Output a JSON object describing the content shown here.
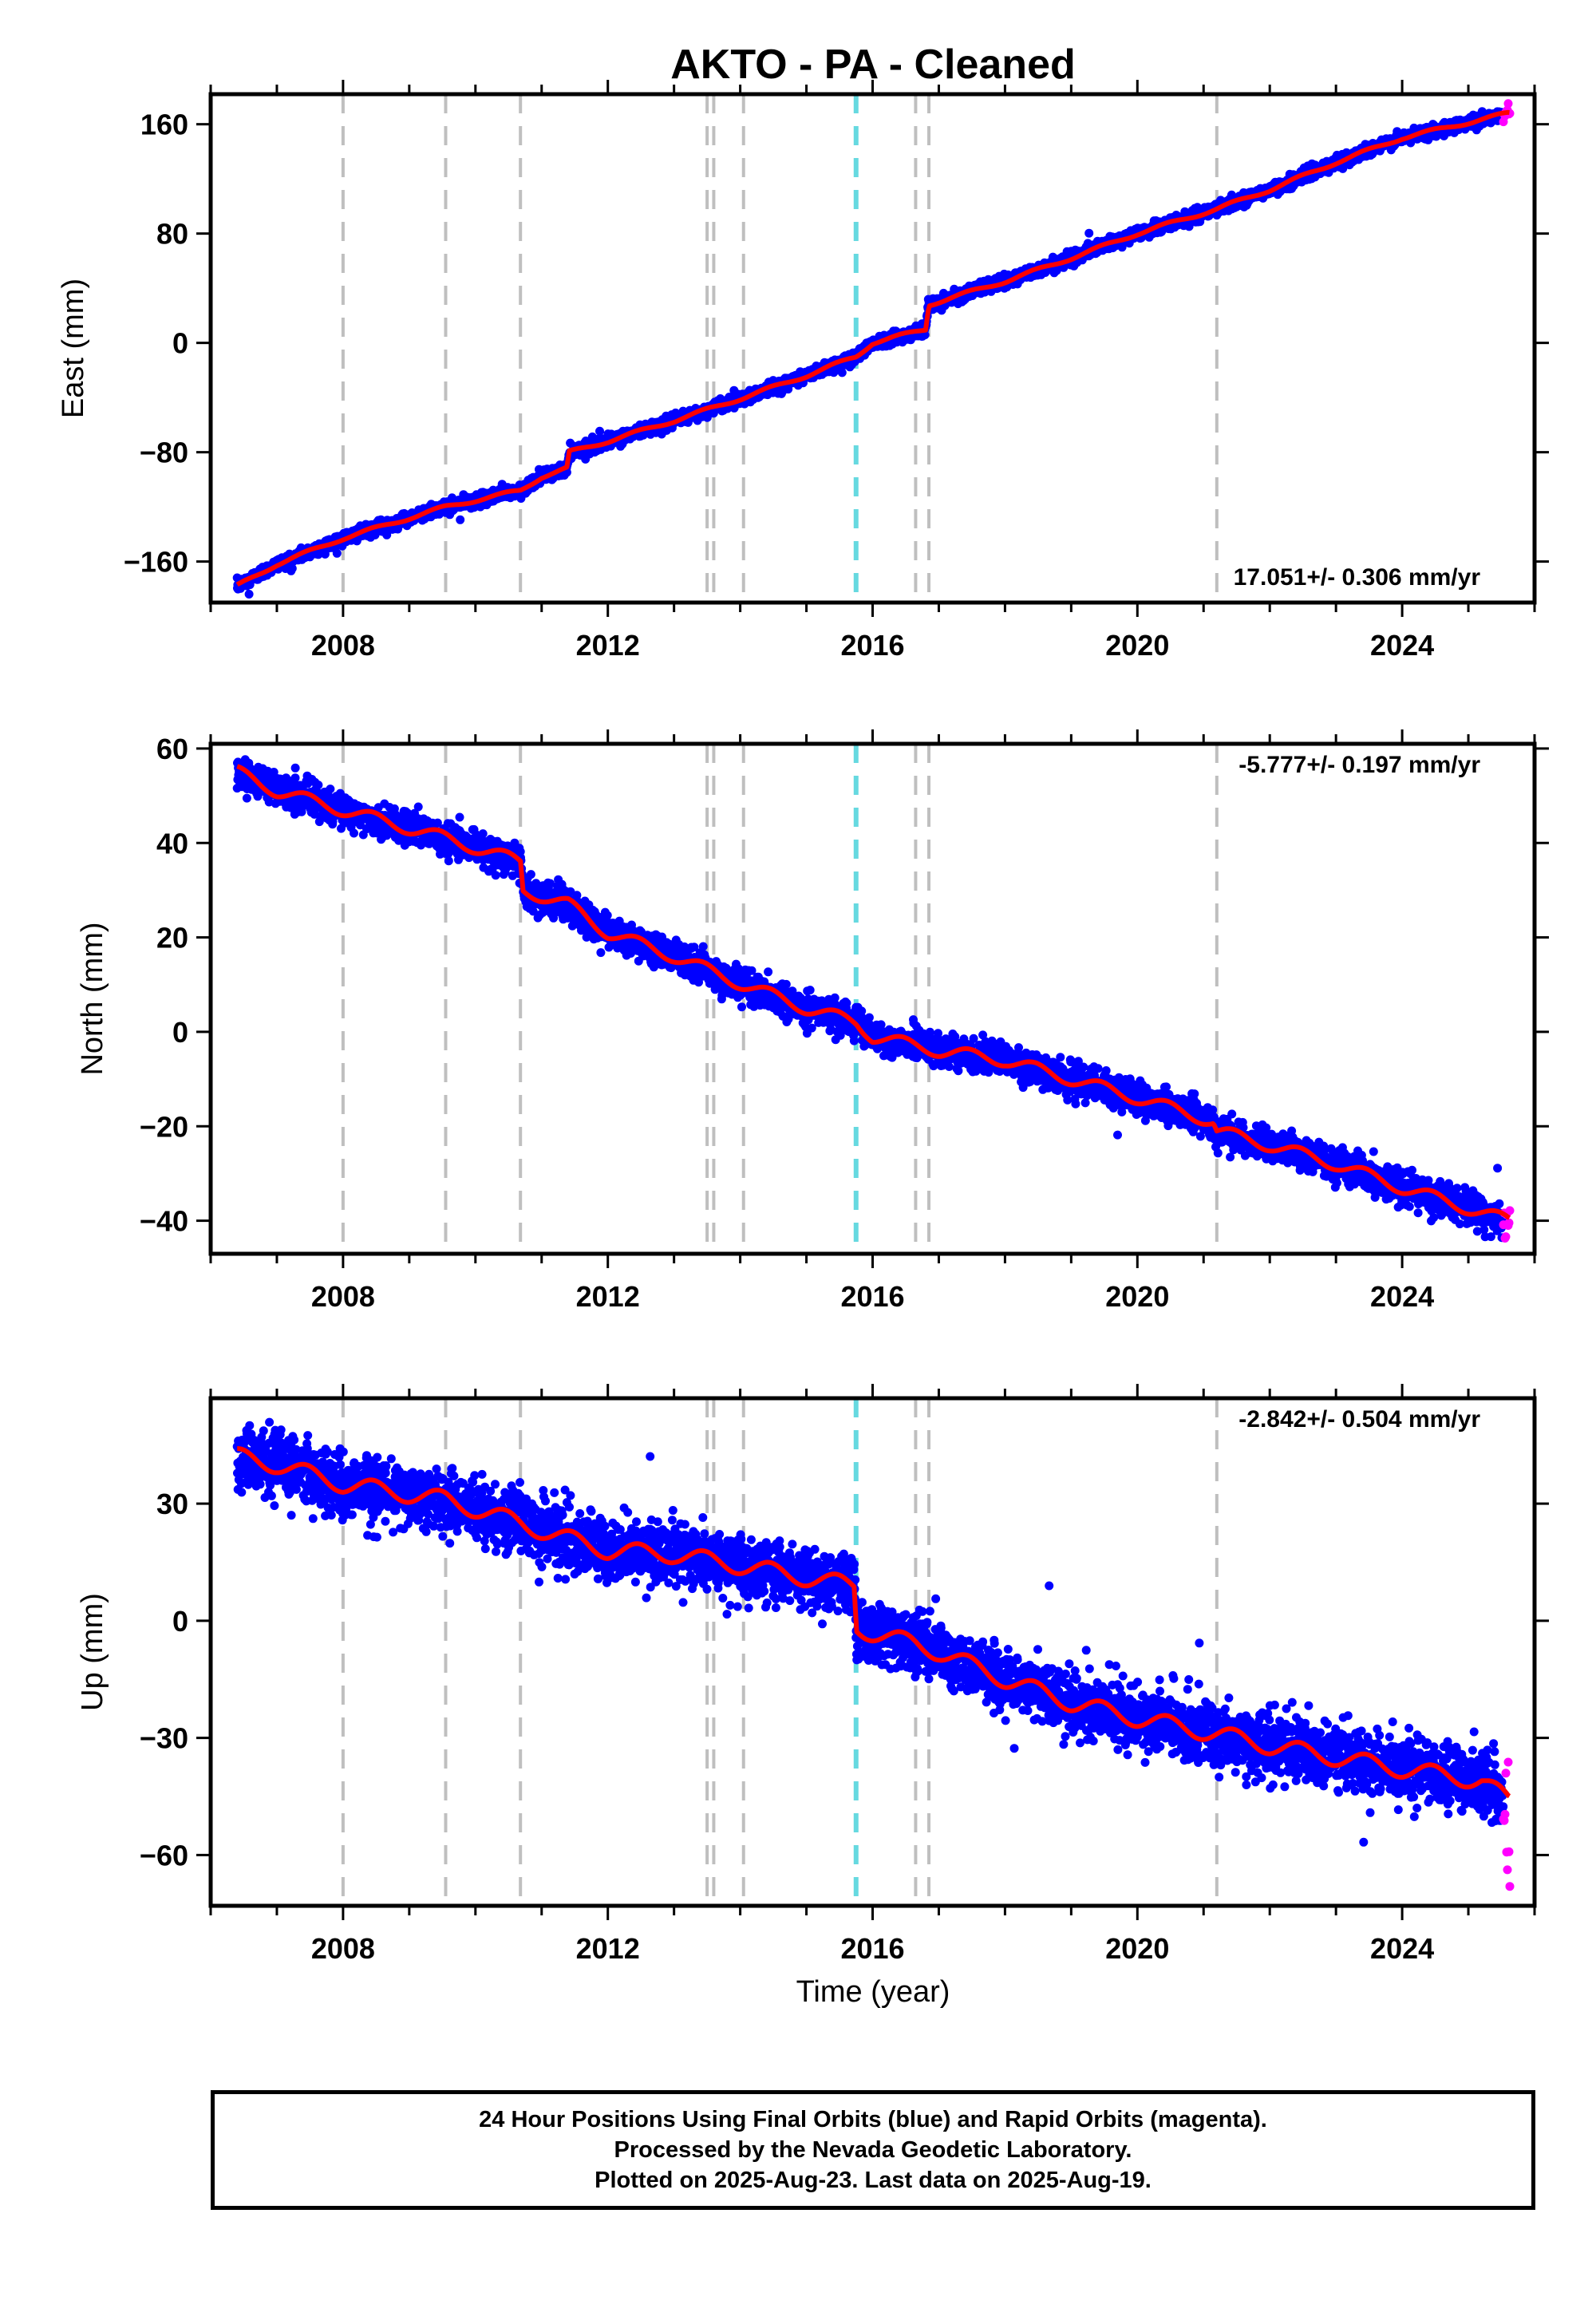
{
  "chart_data": {
    "type": "scatter",
    "title": "AKTO  - PA - Cleaned",
    "xlabel": "Time (year)",
    "xlim": [
      2006.0,
      2026.0
    ],
    "xticks": [
      2008,
      2012,
      2016,
      2020,
      2024
    ],
    "xtick_labels": [
      "2008",
      "2012",
      "2016",
      "2020",
      "2024"
    ],
    "start": 2006.4,
    "end": 2025.63,
    "rapid_start": 2025.53,
    "colors": {
      "final": "#0000ff",
      "rapid": "#ff00ff",
      "model": "#ff0000",
      "event_line": "#bfbfbf",
      "antenna_line": "#66d9e0"
    },
    "event_lines": [
      2008.0,
      2009.55,
      2010.68,
      2013.5,
      2013.6,
      2014.05,
      2016.65,
      2016.85,
      2021.2
    ],
    "highlight_line": 2015.75,
    "panels": [
      {
        "ylabel": "East (mm)",
        "ylim": [
          -190,
          182
        ],
        "yticks": [
          -160,
          -80,
          0,
          80,
          160
        ],
        "ytick_labels": [
          "−160",
          "−80",
          "0",
          "80",
          "160"
        ],
        "rate_label": "17.051+/- 0.306 mm/yr",
        "rate_position": "bottom-right",
        "model": [
          [
            2006.4,
            -178
          ],
          [
            2007,
            -162
          ],
          [
            2008,
            -143
          ],
          [
            2009.55,
            -120
          ],
          [
            2010.68,
            -108
          ],
          [
            2011.0,
            -98
          ],
          [
            2011.38,
            -92
          ],
          [
            2011.42,
            -80
          ],
          [
            2012,
            -72
          ],
          [
            2013,
            -57
          ],
          [
            2014.05,
            -40
          ],
          [
            2015,
            -24
          ],
          [
            2015.75,
            -10
          ],
          [
            2016,
            0
          ],
          [
            2016.8,
            10
          ],
          [
            2016.85,
            28
          ],
          [
            2018,
            45
          ],
          [
            2019,
            62
          ],
          [
            2020,
            80
          ],
          [
            2021.2,
            98
          ],
          [
            2022,
            112
          ],
          [
            2023,
            132
          ],
          [
            2024,
            150
          ],
          [
            2025.6,
            168
          ]
        ],
        "scatter_sigma": 2.2
      },
      {
        "ylabel": "North (mm)",
        "ylim": [
          -47,
          61
        ],
        "yticks": [
          -40,
          -20,
          0,
          20,
          40,
          60
        ],
        "ytick_labels": [
          "−40",
          "−20",
          "0",
          "20",
          "40",
          "60"
        ],
        "rate_label": "-5.777+/- 0.197 mm/yr",
        "rate_position": "top-right",
        "model": [
          [
            2006.4,
            55
          ],
          [
            2007,
            51
          ],
          [
            2008,
            47
          ],
          [
            2009.55,
            41
          ],
          [
            2010.68,
            36
          ],
          [
            2010.72,
            30
          ],
          [
            2011.4,
            27
          ],
          [
            2012,
            21
          ],
          [
            2013,
            16
          ],
          [
            2014.05,
            10
          ],
          [
            2015,
            5
          ],
          [
            2015.75,
            2
          ],
          [
            2016,
            -1
          ],
          [
            2017,
            -4
          ],
          [
            2018,
            -6
          ],
          [
            2019,
            -10
          ],
          [
            2020,
            -14
          ],
          [
            2021.15,
            -19
          ],
          [
            2021.2,
            -21
          ],
          [
            2022,
            -24
          ],
          [
            2023,
            -28
          ],
          [
            2024,
            -33
          ],
          [
            2025.6,
            -40
          ]
        ],
        "scatter_sigma": 1.6
      },
      {
        "ylabel": "Up (mm)",
        "ylim": [
          -73,
          57
        ],
        "yticks": [
          -60,
          -30,
          0,
          30
        ],
        "ytick_labels": [
          "−60",
          "−30",
          "0",
          "30"
        ],
        "rate_label": "-2.842+/- 0.504 mm/yr",
        "rate_position": "top-right",
        "model": [
          [
            2006.4,
            42
          ],
          [
            2007,
            40
          ],
          [
            2008,
            35
          ],
          [
            2009.55,
            31
          ],
          [
            2010.68,
            25
          ],
          [
            2011.2,
            22
          ],
          [
            2012,
            18
          ],
          [
            2013,
            17
          ],
          [
            2014.05,
            14
          ],
          [
            2015,
            11
          ],
          [
            2015.72,
            9
          ],
          [
            2015.76,
            -2
          ],
          [
            2016.65,
            -6
          ],
          [
            2017,
            -8
          ],
          [
            2018,
            -15
          ],
          [
            2019,
            -21
          ],
          [
            2020,
            -25
          ],
          [
            2021.2,
            -29
          ],
          [
            2022,
            -32
          ],
          [
            2023,
            -35
          ],
          [
            2024,
            -38
          ],
          [
            2025.2,
            -41
          ],
          [
            2025.6,
            -46
          ]
        ],
        "scatter_sigma": 3.8
      }
    ]
  },
  "footer": {
    "line1": "24 Hour Positions Using Final Orbits (blue) and Rapid Orbits (magenta).",
    "line2": "Processed by the Nevada Geodetic Laboratory.",
    "line3": "Plotted on 2025-Aug-23. Last data on 2025-Aug-19."
  }
}
